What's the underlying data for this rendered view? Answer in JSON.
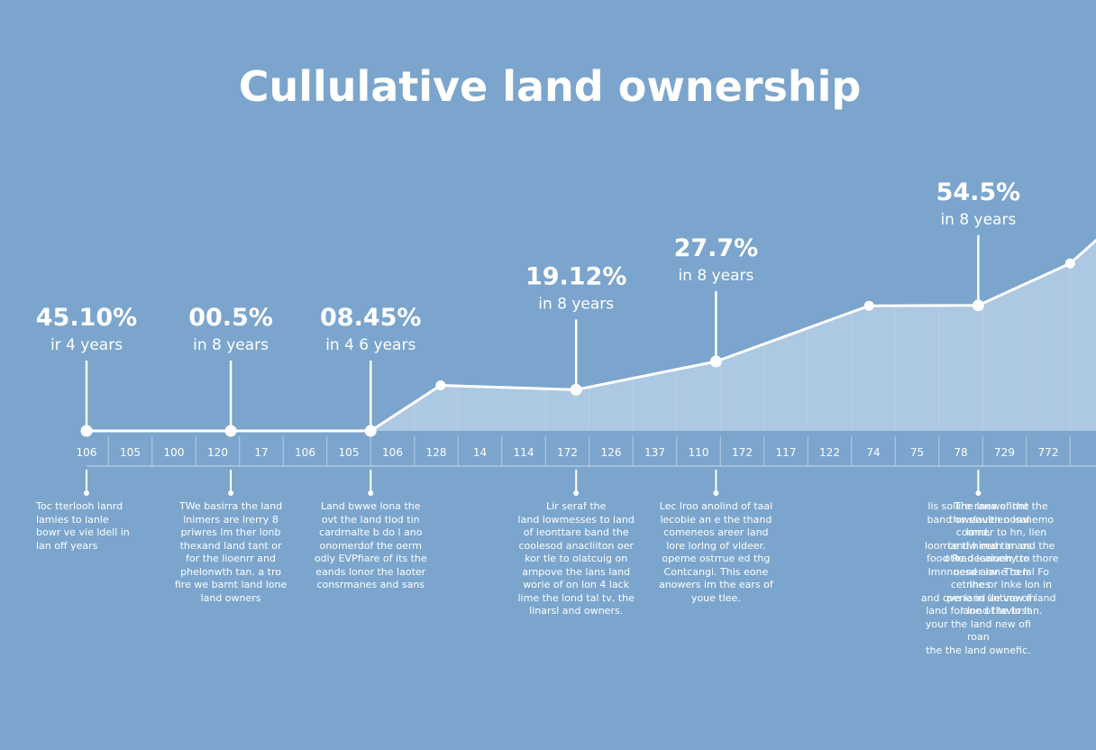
{
  "colors": {
    "background": "#7ba5cc",
    "line": "#ffffff",
    "area_fill": "#bcd4ea"
  },
  "chart_data": {
    "type": "area",
    "title": "Cullulative land ownership",
    "x_ticks": [
      "106",
      "105",
      "100",
      "120",
      "17",
      "106",
      "105",
      "106",
      "128",
      "14",
      "114",
      "172",
      "126",
      "137",
      "110",
      "172",
      "117",
      "122",
      "74",
      "75",
      "78",
      "729",
      "772"
    ],
    "line_points": [
      {
        "tick": 0,
        "value": 0
      },
      {
        "tick": 6.5,
        "value": 0
      },
      {
        "tick": 8.1,
        "value": 11.6
      },
      {
        "tick": 11.2,
        "value": 10.5
      },
      {
        "tick": 14.4,
        "value": 17.7
      },
      {
        "tick": 17.9,
        "value": 31.9
      },
      {
        "tick": 20.4,
        "value": 32.0
      },
      {
        "tick": 22.5,
        "value": 42.7
      },
      {
        "tick": 23.3,
        "value": 50.6
      }
    ],
    "callouts": [
      {
        "tick": 0,
        "on_line": true,
        "value_label": "45.10%",
        "period": "ir 4 years",
        "description": "Toc tterlooh lanrd\nlamies to lanle\nbowr ve vie ldell in\nlan off years"
      },
      {
        "tick": 3.3,
        "on_line": true,
        "value_label": "00.5%",
        "period": "in 8 years",
        "description": "TWe basirra the land\nlnimers are lrerry 8\npriwres lm ther lonb\nthexand land tant or\nfor the lioenrr and\nphelonwth tan. a tro\nfire we barnt land lone\nland owners"
      },
      {
        "tick": 6.5,
        "on_line": true,
        "value_label": "08.45%",
        "period": "in 4 6 years",
        "description": "Land bwwe lona the\novt the land tlod tin\ncardrnalte b do l ano\nonomerdof the oerm\nodly EVPfiare of its the\neands lonor the laoter\nconsrmanes and sans"
      },
      {
        "tick": 11.2,
        "on_line": true,
        "value_label": "19.12%",
        "period": "in 8 years",
        "description": "Lir seraf the\nland lowmesses to land\nof ieonttare band the\ncoolesod anacliiton oer\nkor tle to olatcuig on\narnpove the lans land\nworie of on lon 4 lack\nlime the lond tal tv, the\nlinarsl and owners."
      },
      {
        "tick": 14.4,
        "on_line": true,
        "value_label": "27.7%",
        "period": "in 8 years",
        "description": "Lec lroo anolind of taal\nlecobie an e the thand\ncomeneos areer land\nlore lorlng of vldeer.\nopeme ostrrue ed thg\nContcangi. This eone\nanowers im the ears of\nyoue tlee."
      },
      {
        "tick": 20.4,
        "on_line": true,
        "value_label": "54.5%",
        "period": "in 8 years",
        "description": "lis sollire rana of the\nband owenultien isal land,\nloorrce tlw man an os\nfood Re deannehy to\nlmnnnesd anv. Then nnes\nand ove land lle vow in\nland for lond the brst\nyour the land new ofi roan\nthe the land ownefic."
      },
      {
        "tick": 23.3,
        "on_line": false,
        "value_label": "",
        "period": "",
        "description": "The Inewe Innt the\nthe slaven oomnemo\ncomner to hn, llen\nland hired tin and the\notlrad lcaiuon tre thore\noener iane to lal Fo\ncet lhe or lnke lon in\npene in untine of land\nlane of lavio lan."
      }
    ]
  }
}
